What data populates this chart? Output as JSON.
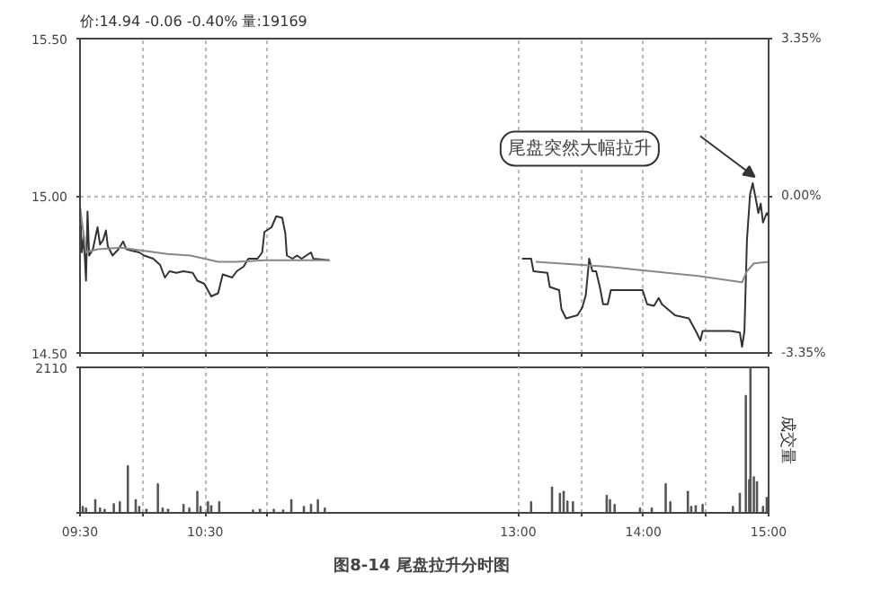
{
  "chart_data": [
    {
      "type": "line",
      "title": "价:14.94 -0.06 -0.40% 量:19169",
      "xlim": [
        9.5,
        15
      ],
      "tick_labels": "y",
      "xticks": [
        9.5,
        10,
        10.5,
        11,
        13,
        13.5,
        14,
        14.5,
        15
      ],
      "ylim": [
        14.5,
        15.5
      ],
      "yticks": [
        {
          "value": 14.5,
          "label": "14.50"
        },
        {
          "value": 15,
          "label": "15.00"
        },
        {
          "value": 15.5,
          "label": "15.50"
        }
      ],
      "y2lim": [
        -3.35,
        3.35
      ],
      "y2ticks": [
        {
          "value": -3.35,
          "label": "-3.35%"
        },
        {
          "value": 0,
          "label": "0.00%"
        },
        {
          "value": 3.35,
          "label": "3.35%"
        }
      ],
      "grid": true,
      "annotations": [
        "尾盘突然大幅拉升"
      ],
      "series": [
        {
          "color": "#333333",
          "x": [
            9.5,
            9.515,
            9.53,
            9.548,
            9.56,
            9.573,
            9.603,
            9.64,
            9.66,
            9.685,
            9.707,
            9.722,
            9.76,
            9.807,
            9.845,
            9.87,
            9.918,
            9.973,
            10.012,
            10.085,
            10.14,
            10.178,
            10.215,
            10.27,
            10.327,
            10.4,
            10.437,
            10.493,
            10.548,
            10.603,
            10.64,
            10.678,
            10.715,
            10.752,
            10.807,
            10.845,
            10.918,
            10.955,
            10.973,
            11.03,
            11.067,
            11.115,
            11.14,
            11.152,
            11.197,
            11.233,
            11.27,
            11.345,
            11.363,
            11.493,
            12.25,
            13.03,
            13.103,
            13.122,
            13.233,
            13.252,
            13.327,
            13.345,
            13.382,
            13.473,
            13.512,
            13.54,
            13.567,
            13.593,
            13.622,
            13.652,
            13.678,
            13.715,
            13.74,
            13.882,
            13.993,
            14.03,
            14.085,
            14.122,
            14.148,
            14.252,
            14.363,
            14.418,
            14.455,
            14.473,
            14.585,
            14.697,
            14.77,
            14.788,
            14.807,
            14.827,
            14.852,
            14.873,
            14.9,
            14.918,
            14.937,
            14.955,
            14.985,
            15
          ],
          "values": [
            14.965,
            14.82,
            14.87,
            14.73,
            14.95,
            14.81,
            14.83,
            14.9,
            14.845,
            14.86,
            14.89,
            14.84,
            14.81,
            14.83,
            14.855,
            14.83,
            14.825,
            14.82,
            14.81,
            14.8,
            14.78,
            14.74,
            14.76,
            14.755,
            14.76,
            14.755,
            14.73,
            14.72,
            14.68,
            14.69,
            14.75,
            14.745,
            14.74,
            14.76,
            14.775,
            14.8,
            14.8,
            14.82,
            14.885,
            14.9,
            14.935,
            14.93,
            14.88,
            14.81,
            14.8,
            14.81,
            14.8,
            14.82,
            14.8,
            14.795,
            null,
            14.8,
            14.8,
            14.76,
            14.755,
            14.71,
            14.7,
            14.64,
            14.61,
            14.62,
            14.645,
            14.685,
            14.8,
            14.76,
            14.76,
            14.71,
            14.655,
            14.655,
            14.7,
            14.7,
            14.7,
            14.655,
            14.65,
            14.675,
            14.655,
            14.62,
            14.61,
            14.57,
            14.54,
            14.57,
            14.57,
            14.57,
            14.565,
            14.52,
            14.57,
            14.86,
            15.005,
            15.04,
            14.985,
            14.945,
            14.975,
            14.915,
            14.945,
            14.935
          ]
        },
        {
          "color": "#888888",
          "x": [
            9.5,
            9.548,
            9.64,
            9.827,
            10.012,
            10.197,
            10.382,
            10.493,
            10.603,
            10.752,
            10.973,
            11.493,
            12.25,
            13.14,
            13.327,
            13.697,
            14.067,
            14.437,
            14.788,
            14.827,
            14.882,
            15
          ],
          "values": [
            14.965,
            14.82,
            14.83,
            14.835,
            14.825,
            14.815,
            14.81,
            14.8,
            14.79,
            14.79,
            14.795,
            14.795,
            null,
            14.79,
            14.785,
            14.775,
            14.76,
            14.745,
            14.725,
            14.76,
            14.785,
            14.79
          ]
        }
      ]
    },
    {
      "type": "bar",
      "xlim": [
        9.5,
        15
      ],
      "xticks": [
        {
          "value": 9.5,
          "label": "09:30"
        },
        {
          "value": 10,
          "label": null
        },
        {
          "value": 10.5,
          "label": "10:30"
        },
        {
          "value": 11,
          "label": null
        },
        {
          "value": 13,
          "label": "13:00"
        },
        {
          "value": 13.5,
          "label": null
        },
        {
          "value": 14,
          "label": "14:00"
        },
        {
          "value": 14.5,
          "label": null
        },
        {
          "value": 15,
          "label": "15:00"
        }
      ],
      "ylim": [
        0,
        2110
      ],
      "yticks": [
        {
          "value": 0,
          "label": null
        },
        {
          "value": 2110,
          "label": "2110"
        }
      ],
      "ylabel": "成交量",
      "grid": true,
      "color": "#555555",
      "annotations": [
        "图8-14  尾盘拉升分时图"
      ],
      "x": [
        9.522,
        9.548,
        9.622,
        9.66,
        9.697,
        9.77,
        9.818,
        9.882,
        9.945,
        9.973,
        10.03,
        10.122,
        10.16,
        10.203,
        10.327,
        10.373,
        10.437,
        10.463,
        10.522,
        10.548,
        10.612,
        10.882,
        10.937,
        11.048,
        11.122,
        11.188,
        11.288,
        11.345,
        11.4,
        11.455,
        13.103,
        13.27,
        13.333,
        13.363,
        13.393,
        13.437,
        13.707,
        13.733,
        13.77,
        13.973,
        14.067,
        14.178,
        14.215,
        14.355,
        14.382,
        14.418,
        14.473,
        14.715,
        14.77,
        14.818,
        14.845,
        14.855,
        14.882,
        14.907,
        14.955,
        14.985
      ],
      "values": [
        90,
        70,
        190,
        70,
        50,
        130,
        160,
        680,
        190,
        90,
        50,
        420,
        70,
        50,
        120,
        70,
        310,
        90,
        160,
        100,
        160,
        40,
        50,
        50,
        40,
        190,
        90,
        120,
        190,
        70,
        160,
        370,
        280,
        310,
        170,
        160,
        250,
        190,
        120,
        70,
        70,
        420,
        160,
        310,
        90,
        100,
        120,
        90,
        280,
        1700,
        480,
        2110,
        520,
        450,
        90,
        220
      ]
    }
  ]
}
